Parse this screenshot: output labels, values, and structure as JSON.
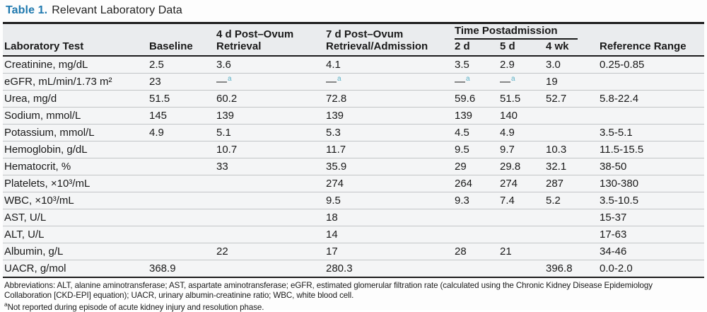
{
  "title": {
    "label": "Table 1.",
    "text": "Relevant Laboratory Data"
  },
  "table": {
    "headers": {
      "lab_test": "Laboratory Test",
      "baseline": "Baseline",
      "post_ovum_4d": "4 d Post–Ovum Retrieval",
      "post_ovum_7d": "7 d Post–Ovum Retrieval/Admission",
      "time_postadmission": "Time Postadmission",
      "sub": [
        "2 d",
        "5 d",
        "4 wk"
      ],
      "reference": "Reference Range"
    },
    "rows": [
      {
        "test": "Creatinine, mg/dL",
        "values": [
          "2.5",
          "3.6",
          "4.1",
          "3.5",
          "2.9",
          "3.0",
          "0.25-0.85"
        ]
      },
      {
        "test": "eGFR, mL/min/1.73 m²",
        "values": [
          "23",
          "—^a",
          "—^a",
          "—^a",
          "—^a",
          "19",
          ""
        ]
      },
      {
        "test": "Urea, mg/d",
        "values": [
          "51.5",
          "60.2",
          "72.8",
          "59.6",
          "51.5",
          "52.7",
          "5.8-22.4"
        ]
      },
      {
        "test": "Sodium, mmol/L",
        "values": [
          "145",
          "139",
          "139",
          "139",
          "140",
          "",
          ""
        ]
      },
      {
        "test": "Potassium, mmol/L",
        "values": [
          "4.9",
          "5.1",
          "5.3",
          "4.5",
          "4.9",
          "",
          "3.5-5.1"
        ]
      },
      {
        "test": "Hemoglobin, g/dL",
        "values": [
          "",
          "10.7",
          "11.7",
          "9.5",
          "9.7",
          "10.3",
          "11.5-15.5"
        ]
      },
      {
        "test": "Hematocrit, %",
        "values": [
          "",
          "33",
          "35.9",
          "29",
          "29.8",
          "32.1",
          "38-50"
        ]
      },
      {
        "test": "Platelets, ×10³/mL",
        "values": [
          "",
          "",
          "274",
          "264",
          "274",
          "287",
          "130-380"
        ]
      },
      {
        "test": "WBC, ×10³/mL",
        "values": [
          "",
          "",
          "9.5",
          "9.3",
          "7.4",
          "5.2",
          "3.5-10.5"
        ]
      },
      {
        "test": "AST, U/L",
        "values": [
          "",
          "",
          "18",
          "",
          "",
          "",
          "15-37"
        ]
      },
      {
        "test": "ALT, U/L",
        "values": [
          "",
          "",
          "14",
          "",
          "",
          "",
          "17-63"
        ]
      },
      {
        "test": "Albumin, g/L",
        "values": [
          "",
          "22",
          "17",
          "28",
          "21",
          "",
          "34-46"
        ]
      },
      {
        "test": "UACR, g/mol",
        "values": [
          "368.9",
          "",
          "280.3",
          "",
          "",
          "396.8",
          "0.0-2.0"
        ]
      }
    ]
  },
  "footnotes": {
    "abbreviations": "Abbreviations: ALT, alanine aminotransferase; AST, aspartate aminotransferase; eGFR, estimated glomerular filtration rate (calculated using the Chronic Kidney Disease Epidemiology Collaboration [CKD-EPI] equation); UACR, urinary albumin-creatinine ratio; WBC, white blood cell.",
    "marker": "a",
    "note": "Not reported during episode of acute kidney injury and resolution phase."
  },
  "colors": {
    "title_accent": "#1e78ae",
    "footnote_ref": "#5cb0c6",
    "rule": "#1c1c1c",
    "header_bg": "#eaecee",
    "row_bg": "#f4f5f6"
  }
}
